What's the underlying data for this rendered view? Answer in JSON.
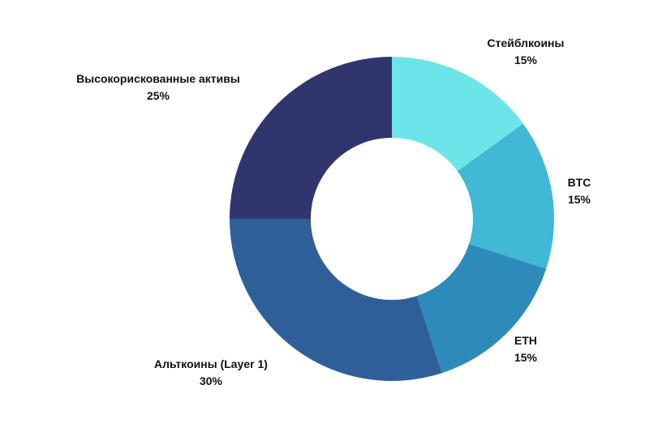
{
  "chart_data": {
    "type": "pie",
    "donut": true,
    "categories": [
      "Стейблкоины",
      "BTC",
      "ETH",
      "Альткоины (Layer 1)",
      "Высокорискованные активы"
    ],
    "values": [
      15,
      15,
      15,
      30,
      25
    ],
    "value_labels": [
      "15%",
      "15%",
      "15%",
      "30%",
      "25%"
    ],
    "colors": [
      "#6ce5e8",
      "#41b8d5",
      "#2d8bba",
      "#2f5f98",
      "#31356e"
    ],
    "background_color": "#ffffff",
    "legend": "none"
  }
}
